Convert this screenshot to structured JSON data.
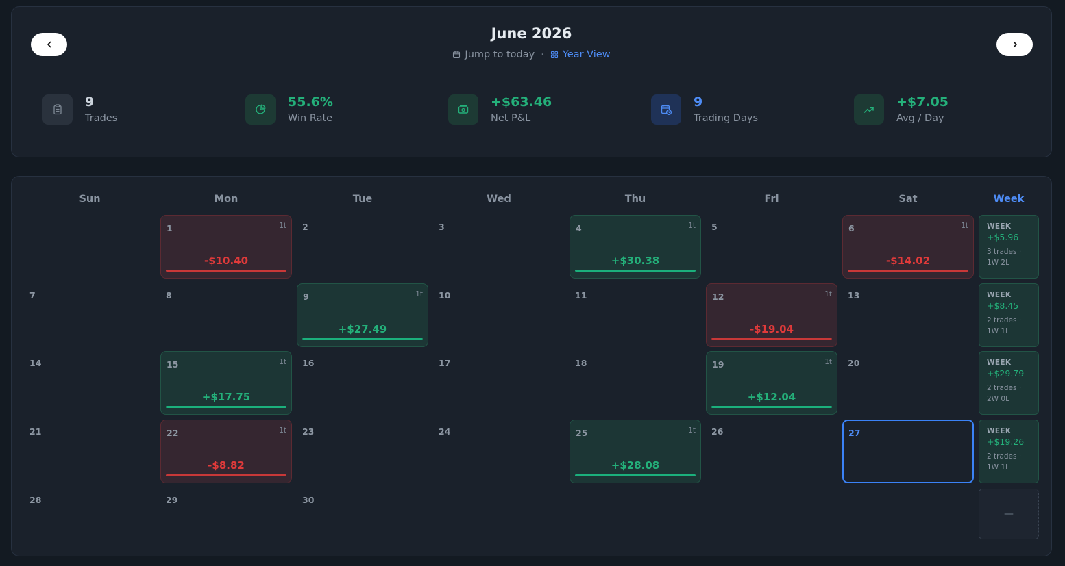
{
  "header": {
    "month_title": "June 2026",
    "jump_today_label": "Jump to today",
    "separator": "·",
    "year_view_label": "Year View"
  },
  "stats": [
    {
      "value": "9",
      "label": "Trades",
      "icon": "clipboard-icon",
      "value_color": "#cbd3dc"
    },
    {
      "value": "55.6%",
      "label": "Win Rate",
      "icon": "pie-chart-icon",
      "value_color": "#24b07a"
    },
    {
      "value": "+$63.46",
      "label": "Net P&L",
      "icon": "banknote-icon",
      "value_color": "#24b07a"
    },
    {
      "value": "9",
      "label": "Trading Days",
      "icon": "calendar-clock-icon",
      "value_color": "#4e8cf5"
    },
    {
      "value": "+$7.05",
      "label": "Avg / Day",
      "icon": "trending-up-icon",
      "value_color": "#24b07a"
    }
  ],
  "calendar": {
    "weekdays": [
      "Sun",
      "Mon",
      "Tue",
      "Wed",
      "Thu",
      "Fri",
      "Sat"
    ],
    "week_header": "Week",
    "days": [
      {
        "day": "1",
        "week": 0,
        "dow": 1,
        "pnl": "-$10.40",
        "trades": "1t",
        "result": "loss"
      },
      {
        "day": "2",
        "week": 0,
        "dow": 2
      },
      {
        "day": "3",
        "week": 0,
        "dow": 3
      },
      {
        "day": "4",
        "week": 0,
        "dow": 4,
        "pnl": "+$30.38",
        "trades": "1t",
        "result": "win"
      },
      {
        "day": "5",
        "week": 0,
        "dow": 5
      },
      {
        "day": "6",
        "week": 0,
        "dow": 6,
        "pnl": "-$14.02",
        "trades": "1t",
        "result": "loss"
      },
      {
        "day": "7",
        "week": 1,
        "dow": 0
      },
      {
        "day": "8",
        "week": 1,
        "dow": 1
      },
      {
        "day": "9",
        "week": 1,
        "dow": 2,
        "pnl": "+$27.49",
        "trades": "1t",
        "result": "win"
      },
      {
        "day": "10",
        "week": 1,
        "dow": 3
      },
      {
        "day": "11",
        "week": 1,
        "dow": 4
      },
      {
        "day": "12",
        "week": 1,
        "dow": 5,
        "pnl": "-$19.04",
        "trades": "1t",
        "result": "loss"
      },
      {
        "day": "13",
        "week": 1,
        "dow": 6
      },
      {
        "day": "14",
        "week": 2,
        "dow": 0
      },
      {
        "day": "15",
        "week": 2,
        "dow": 1,
        "pnl": "+$17.75",
        "trades": "1t",
        "result": "win"
      },
      {
        "day": "16",
        "week": 2,
        "dow": 2
      },
      {
        "day": "17",
        "week": 2,
        "dow": 3
      },
      {
        "day": "18",
        "week": 2,
        "dow": 4
      },
      {
        "day": "19",
        "week": 2,
        "dow": 5,
        "pnl": "+$12.04",
        "trades": "1t",
        "result": "win"
      },
      {
        "day": "20",
        "week": 2,
        "dow": 6
      },
      {
        "day": "21",
        "week": 3,
        "dow": 0
      },
      {
        "day": "22",
        "week": 3,
        "dow": 1,
        "pnl": "-$8.82",
        "trades": "1t",
        "result": "loss"
      },
      {
        "day": "23",
        "week": 3,
        "dow": 2
      },
      {
        "day": "24",
        "week": 3,
        "dow": 3
      },
      {
        "day": "25",
        "week": 3,
        "dow": 4,
        "pnl": "+$28.08",
        "trades": "1t",
        "result": "win"
      },
      {
        "day": "26",
        "week": 3,
        "dow": 5
      },
      {
        "day": "27",
        "week": 3,
        "dow": 6,
        "today": true
      },
      {
        "day": "28",
        "week": 4,
        "dow": 0
      },
      {
        "day": "29",
        "week": 4,
        "dow": 1
      },
      {
        "day": "30",
        "week": 4,
        "dow": 2
      }
    ],
    "week_summaries": [
      {
        "title": "WEEK",
        "pnl": "+$5.96",
        "meta": "3 trades · 1W 2L"
      },
      {
        "title": "WEEK",
        "pnl": "+$8.45",
        "meta": "2 trades · 1W 1L"
      },
      {
        "title": "WEEK",
        "pnl": "+$29.79",
        "meta": "2 trades · 2W 0L"
      },
      {
        "title": "WEEK",
        "pnl": "+$19.26",
        "meta": "2 trades · 1W 1L"
      },
      {
        "empty": true,
        "placeholder": "—"
      }
    ]
  }
}
